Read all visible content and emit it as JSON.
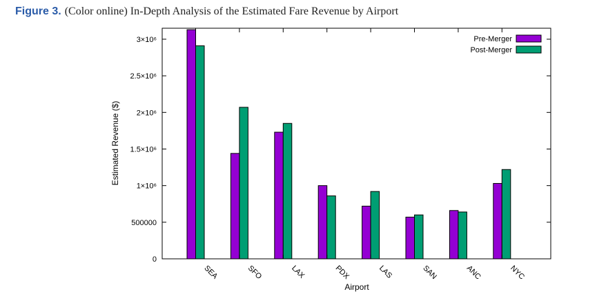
{
  "figure": {
    "label": "Figure 3.",
    "caption": "(Color online) In-Depth Analysis of the Estimated Fare Revenue by Airport"
  },
  "chart_data": {
    "type": "bar",
    "title": "",
    "xlabel": "Airport",
    "ylabel": "Estimated Revenue ($)",
    "ylim": [
      0,
      3150000
    ],
    "yticks": [
      {
        "value": 0,
        "label": "0"
      },
      {
        "value": 500000,
        "label": "500000"
      },
      {
        "value": 1000000,
        "label": "1×10⁶"
      },
      {
        "value": 1500000,
        "label": "1.5×10⁶"
      },
      {
        "value": 2000000,
        "label": "2×10⁶"
      },
      {
        "value": 2500000,
        "label": "2.5×10⁶"
      },
      {
        "value": 3000000,
        "label": "3×10⁶"
      }
    ],
    "grid": false,
    "legend": "top-right",
    "categories": [
      "SEA",
      "SFO",
      "LAX",
      "PDX",
      "LAS",
      "SAN",
      "ANC",
      "NYC"
    ],
    "series": [
      {
        "name": "Pre-Merger",
        "color": "#9400d3",
        "values": [
          3130000,
          1440000,
          1730000,
          1000000,
          720000,
          570000,
          660000,
          1030000
        ]
      },
      {
        "name": "Post-Merger",
        "color": "#009e73",
        "values": [
          2910000,
          2070000,
          1850000,
          860000,
          920000,
          600000,
          640000,
          1220000
        ]
      }
    ]
  }
}
